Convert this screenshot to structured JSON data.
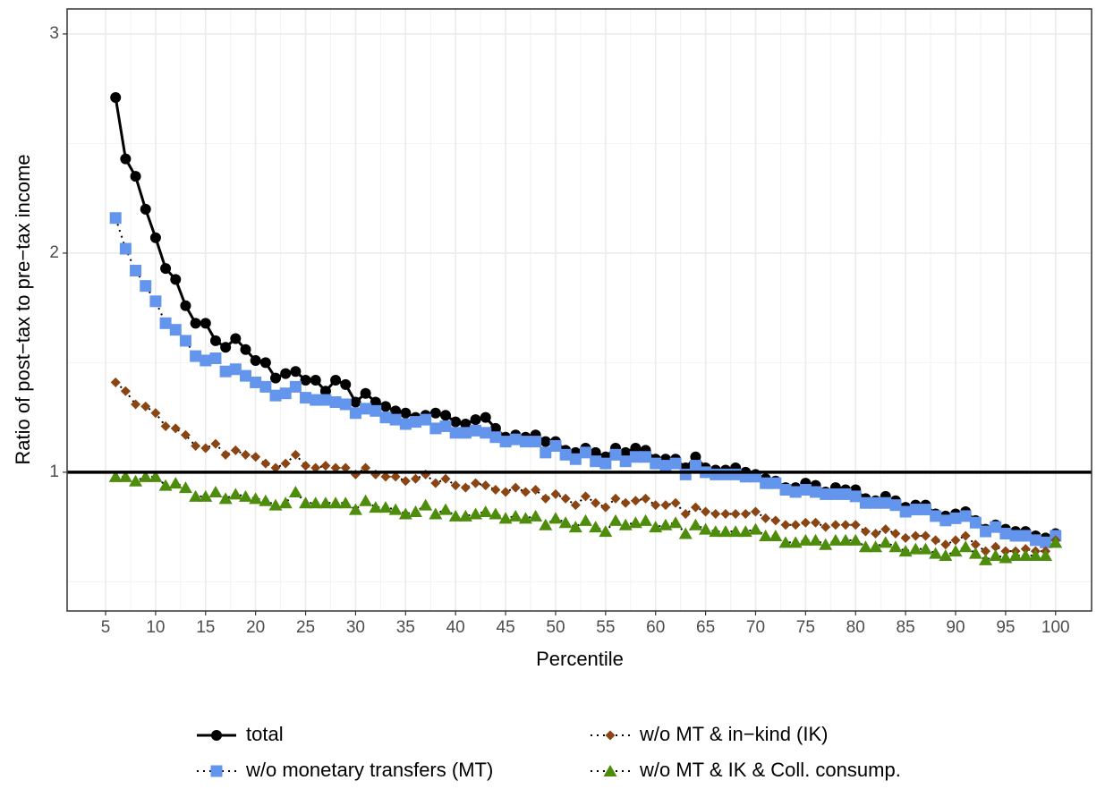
{
  "chart_data": {
    "type": "line",
    "x_label": "Percentile",
    "y_label": "Ratio of post−tax to pre−tax income",
    "x": [
      6,
      7,
      8,
      9,
      10,
      11,
      12,
      13,
      14,
      15,
      16,
      17,
      18,
      19,
      20,
      21,
      22,
      23,
      24,
      25,
      26,
      27,
      28,
      29,
      30,
      31,
      32,
      33,
      34,
      35,
      36,
      37,
      38,
      39,
      40,
      41,
      42,
      43,
      44,
      45,
      46,
      47,
      48,
      49,
      50,
      51,
      52,
      53,
      54,
      55,
      56,
      57,
      58,
      59,
      60,
      61,
      62,
      63,
      64,
      65,
      66,
      67,
      68,
      69,
      70,
      71,
      72,
      73,
      74,
      75,
      76,
      77,
      78,
      79,
      80,
      81,
      82,
      83,
      84,
      85,
      86,
      87,
      88,
      89,
      90,
      91,
      92,
      93,
      94,
      95,
      96,
      97,
      98,
      99,
      100
    ],
    "series": [
      {
        "name": "total",
        "color": "#000000",
        "marker": "circle",
        "line": "solid",
        "values": [
          2.71,
          2.43,
          2.35,
          2.2,
          2.07,
          1.93,
          1.88,
          1.76,
          1.68,
          1.68,
          1.6,
          1.57,
          1.61,
          1.56,
          1.51,
          1.5,
          1.43,
          1.45,
          1.46,
          1.42,
          1.42,
          1.37,
          1.42,
          1.4,
          1.32,
          1.36,
          1.32,
          1.3,
          1.28,
          1.27,
          1.25,
          1.26,
          1.27,
          1.26,
          1.23,
          1.22,
          1.24,
          1.25,
          1.2,
          1.16,
          1.17,
          1.16,
          1.17,
          1.14,
          1.14,
          1.1,
          1.09,
          1.11,
          1.09,
          1.07,
          1.11,
          1.09,
          1.11,
          1.1,
          1.06,
          1.06,
          1.06,
          1.02,
          1.07,
          1.02,
          1.01,
          1.01,
          1.02,
          1.0,
          0.99,
          0.97,
          0.96,
          0.93,
          0.93,
          0.95,
          0.94,
          0.91,
          0.93,
          0.92,
          0.92,
          0.88,
          0.87,
          0.89,
          0.87,
          0.84,
          0.85,
          0.85,
          0.81,
          0.8,
          0.81,
          0.82,
          0.78,
          0.74,
          0.76,
          0.74,
          0.73,
          0.73,
          0.71,
          0.7,
          0.72
        ]
      },
      {
        "name": "w/o monetary transfers (MT)",
        "color": "#6495ED",
        "marker": "square",
        "line": "dotted",
        "values": [
          2.16,
          2.02,
          1.92,
          1.85,
          1.78,
          1.68,
          1.65,
          1.6,
          1.53,
          1.51,
          1.52,
          1.46,
          1.47,
          1.44,
          1.41,
          1.39,
          1.35,
          1.36,
          1.39,
          1.34,
          1.33,
          1.33,
          1.32,
          1.31,
          1.27,
          1.29,
          1.28,
          1.25,
          1.24,
          1.22,
          1.23,
          1.24,
          1.2,
          1.21,
          1.18,
          1.18,
          1.19,
          1.18,
          1.16,
          1.14,
          1.15,
          1.14,
          1.14,
          1.09,
          1.12,
          1.08,
          1.06,
          1.09,
          1.05,
          1.04,
          1.08,
          1.05,
          1.07,
          1.07,
          1.04,
          1.03,
          1.04,
          0.99,
          1.03,
          1.0,
          0.99,
          0.99,
          0.99,
          0.98,
          0.98,
          0.95,
          0.95,
          0.92,
          0.91,
          0.92,
          0.91,
          0.9,
          0.9,
          0.9,
          0.89,
          0.86,
          0.86,
          0.86,
          0.85,
          0.82,
          0.83,
          0.83,
          0.8,
          0.78,
          0.79,
          0.8,
          0.77,
          0.73,
          0.75,
          0.72,
          0.71,
          0.71,
          0.69,
          0.68,
          0.71
        ]
      },
      {
        "name": "w/o MT & in−kind (IK)",
        "color": "#8B4513",
        "marker": "diamond",
        "line": "dotted",
        "values": [
          1.41,
          1.37,
          1.31,
          1.3,
          1.27,
          1.21,
          1.2,
          1.17,
          1.12,
          1.11,
          1.13,
          1.08,
          1.1,
          1.08,
          1.07,
          1.04,
          1.02,
          1.04,
          1.08,
          1.03,
          1.02,
          1.03,
          1.02,
          1.02,
          0.99,
          1.02,
          0.99,
          0.98,
          0.98,
          0.96,
          0.97,
          0.99,
          0.95,
          0.97,
          0.94,
          0.93,
          0.95,
          0.94,
          0.92,
          0.91,
          0.93,
          0.91,
          0.92,
          0.88,
          0.9,
          0.88,
          0.85,
          0.89,
          0.86,
          0.84,
          0.88,
          0.86,
          0.87,
          0.88,
          0.85,
          0.85,
          0.86,
          0.81,
          0.84,
          0.82,
          0.81,
          0.81,
          0.81,
          0.81,
          0.82,
          0.79,
          0.78,
          0.76,
          0.76,
          0.77,
          0.77,
          0.75,
          0.76,
          0.76,
          0.76,
          0.73,
          0.72,
          0.74,
          0.72,
          0.7,
          0.71,
          0.71,
          0.69,
          0.67,
          0.69,
          0.71,
          0.67,
          0.64,
          0.66,
          0.64,
          0.64,
          0.65,
          0.64,
          0.64,
          0.69
        ]
      },
      {
        "name": "w/o MT & IK & Coll. consump.",
        "color": "#4E8C0B",
        "marker": "triangle",
        "line": "dotted",
        "values": [
          0.98,
          0.98,
          0.96,
          0.98,
          0.98,
          0.94,
          0.95,
          0.93,
          0.89,
          0.89,
          0.91,
          0.88,
          0.9,
          0.89,
          0.88,
          0.87,
          0.85,
          0.86,
          0.91,
          0.86,
          0.86,
          0.86,
          0.86,
          0.86,
          0.83,
          0.87,
          0.84,
          0.84,
          0.83,
          0.81,
          0.82,
          0.85,
          0.81,
          0.83,
          0.8,
          0.8,
          0.81,
          0.82,
          0.81,
          0.79,
          0.8,
          0.79,
          0.8,
          0.76,
          0.79,
          0.77,
          0.75,
          0.78,
          0.75,
          0.73,
          0.78,
          0.76,
          0.77,
          0.78,
          0.75,
          0.76,
          0.77,
          0.72,
          0.76,
          0.74,
          0.73,
          0.73,
          0.73,
          0.73,
          0.74,
          0.71,
          0.71,
          0.68,
          0.68,
          0.69,
          0.69,
          0.67,
          0.69,
          0.69,
          0.69,
          0.66,
          0.66,
          0.68,
          0.66,
          0.64,
          0.65,
          0.65,
          0.63,
          0.62,
          0.64,
          0.66,
          0.63,
          0.6,
          0.62,
          0.61,
          0.62,
          0.62,
          0.62,
          0.62,
          0.68
        ]
      }
    ],
    "xlim": [
      1.15,
      103.6
    ],
    "ylim": [
      0.367,
      3.114
    ],
    "xticks": [
      5,
      10,
      15,
      20,
      25,
      30,
      35,
      40,
      45,
      50,
      55,
      60,
      65,
      70,
      75,
      80,
      85,
      90,
      95,
      100
    ],
    "yticks": [
      1,
      2,
      3
    ],
    "hline": 1,
    "grid": true,
    "legend_position": "bottom"
  }
}
